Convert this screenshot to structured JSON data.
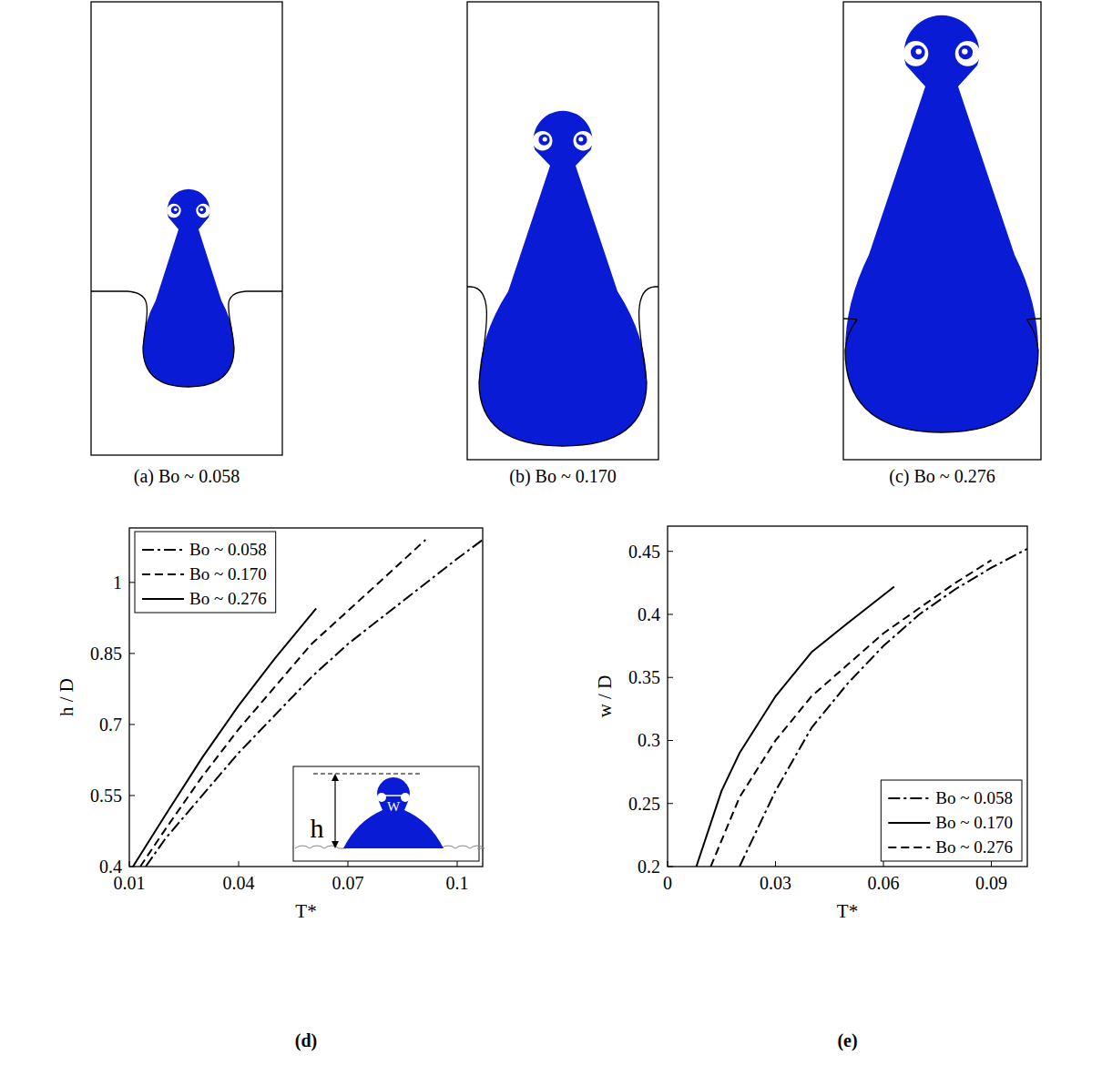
{
  "panels": [
    {
      "caption": "(a) Bo ~ 0.058"
    },
    {
      "caption": "(b) Bo ~ 0.170"
    },
    {
      "caption": "(c) Bo ~ 0.276"
    }
  ],
  "chart_data": [
    {
      "type": "line",
      "title": "(d)",
      "x_label": "T*",
      "y_label": "h / D",
      "xlim": [
        0.01,
        0.107
      ],
      "xticks": [
        0.01,
        0.04,
        0.07,
        0.1
      ],
      "ylim": [
        0.4,
        1.115
      ],
      "yticks": [
        0.4,
        0.55,
        0.7,
        0.85,
        1
      ],
      "legend": "top-left",
      "annotations": [
        "h",
        "W"
      ],
      "series": [
        {
          "name": "Bo ~ 0.058",
          "color": "#000000",
          "line_style": "dashdot",
          "x": [
            0.0145,
            0.02,
            0.03,
            0.04,
            0.05,
            0.06,
            0.07,
            0.08,
            0.09,
            0.1,
            0.107
          ],
          "values": [
            0.4,
            0.46,
            0.55,
            0.64,
            0.72,
            0.8,
            0.87,
            0.93,
            0.99,
            1.05,
            1.09
          ]
        },
        {
          "name": "Bo ~ 0.170",
          "color": "#000000",
          "line_style": "dashed",
          "x": [
            0.013,
            0.02,
            0.03,
            0.04,
            0.05,
            0.06,
            0.07,
            0.08,
            0.0913
          ],
          "values": [
            0.4,
            0.48,
            0.59,
            0.69,
            0.78,
            0.87,
            0.94,
            1.01,
            1.09
          ]
        },
        {
          "name": "Bo ~ 0.276",
          "color": "#000000",
          "line_style": "solid",
          "x": [
            0.011,
            0.02,
            0.03,
            0.04,
            0.05,
            0.0613
          ],
          "values": [
            0.4,
            0.51,
            0.63,
            0.74,
            0.84,
            0.945
          ]
        }
      ]
    },
    {
      "type": "line",
      "title": "(e)",
      "x_label": "T*",
      "y_label": "w / D",
      "xlim": [
        0,
        0.1
      ],
      "xticks": [
        0,
        0.03,
        0.06,
        0.09
      ],
      "ylim": [
        0.2,
        0.47
      ],
      "yticks": [
        0.2,
        0.25,
        0.3,
        0.35,
        0.4,
        0.45
      ],
      "legend": "bottom-right",
      "series": [
        {
          "name": "Bo ~ 0.058",
          "color": "#000000",
          "line_style": "dashdot",
          "x": [
            0.02,
            0.03,
            0.04,
            0.05,
            0.06,
            0.07,
            0.08,
            0.09,
            0.1
          ],
          "values": [
            0.2,
            0.26,
            0.31,
            0.345,
            0.375,
            0.4,
            0.42,
            0.437,
            0.452
          ]
        },
        {
          "name": "Bo ~ 0.170",
          "color": "#000000",
          "line_style": "solid",
          "x": [
            0.008,
            0.015,
            0.02,
            0.03,
            0.04,
            0.05,
            0.063
          ],
          "values": [
            0.2,
            0.26,
            0.29,
            0.335,
            0.37,
            0.393,
            0.422
          ]
        },
        {
          "name": "Bo ~ 0.276",
          "color": "#000000",
          "line_style": "dashed",
          "x": [
            0.012,
            0.02,
            0.03,
            0.04,
            0.05,
            0.06,
            0.07,
            0.08,
            0.09
          ],
          "values": [
            0.2,
            0.255,
            0.3,
            0.335,
            0.36,
            0.385,
            0.405,
            0.425,
            0.443
          ]
        }
      ]
    }
  ]
}
